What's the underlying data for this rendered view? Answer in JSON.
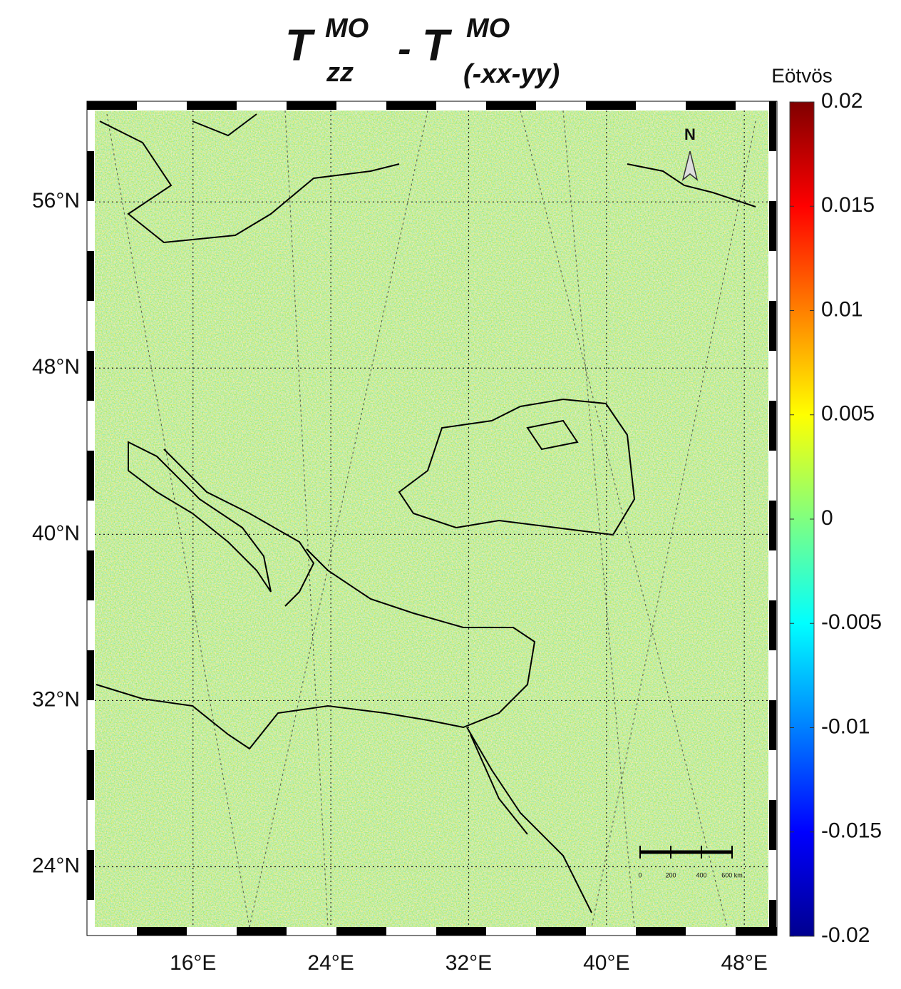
{
  "chart_data": {
    "type": "map",
    "title": {
      "base1": "T",
      "sup1": "MO",
      "sub1": "zz",
      "minus": "-",
      "base2": "T",
      "sup2": "MO",
      "sub2": "(-xx-yy)"
    },
    "xlim": [
      10.3,
      49.4
    ],
    "xticks": [
      {
        "value": 16,
        "label": "16°E"
      },
      {
        "value": 24,
        "label": "24°E"
      },
      {
        "value": 32,
        "label": "32°E"
      },
      {
        "value": 40,
        "label": "40°E"
      },
      {
        "value": 48,
        "label": "48°E"
      }
    ],
    "ylim": [
      21.1,
      60.4
    ],
    "yticks": [
      {
        "value": 24,
        "label": "24°N"
      },
      {
        "value": 32,
        "label": "32°N"
      },
      {
        "value": 40,
        "label": "40°N"
      },
      {
        "value": 48,
        "label": "48°N"
      },
      {
        "value": 56,
        "label": "56°N"
      }
    ],
    "grid": true,
    "colorbar": {
      "label": "Eötvös",
      "colormap": "jet",
      "lim": [
        -0.02,
        0.02
      ],
      "ticks": [
        0.02,
        0.015,
        0.01,
        0.005,
        0,
        -0.005,
        -0.01,
        -0.015,
        -0.02
      ]
    },
    "north_label": "N",
    "scale_bar_labels": [
      "0",
      "200",
      "400",
      "600 km"
    ]
  }
}
